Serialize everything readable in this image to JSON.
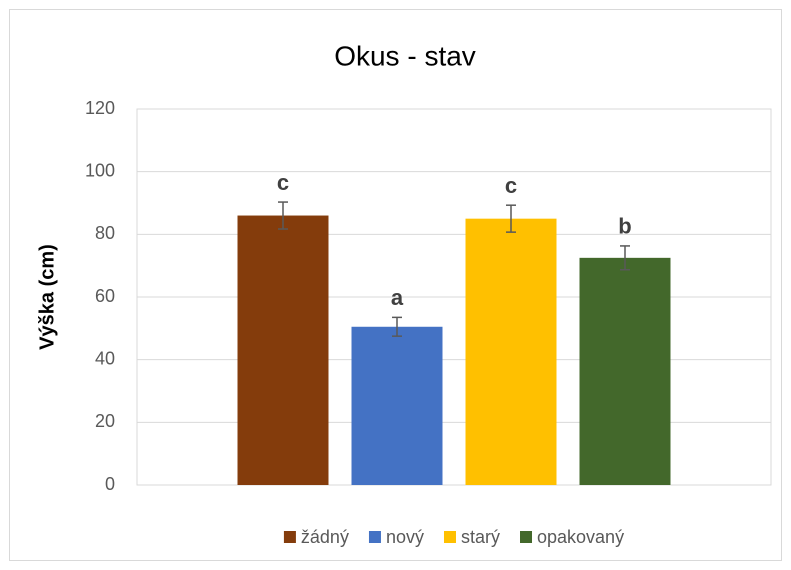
{
  "chart_data": {
    "type": "bar",
    "title": "Okus - stav",
    "ylabel": "Výška (cm)",
    "categories": [
      null
    ],
    "series": [
      {
        "name": "žádný",
        "color": "#843c0c",
        "values": [
          86
        ],
        "errors": [
          4.3
        ],
        "label": "c"
      },
      {
        "name": "nový",
        "color": "#4472c4",
        "values": [
          50.5
        ],
        "errors": [
          3
        ],
        "label": "a"
      },
      {
        "name": "starý",
        "color": "#ffc000",
        "values": [
          85
        ],
        "errors": [
          4.3
        ],
        "label": "c"
      },
      {
        "name": "opakovaný",
        "color": "#43682b",
        "values": [
          72.5
        ],
        "errors": [
          3.8
        ],
        "label": "b"
      }
    ],
    "ylim": [
      0,
      120
    ],
    "yticks": [
      0,
      20,
      40,
      60,
      80,
      100,
      120
    ],
    "grid": true,
    "legend": "bottom"
  }
}
